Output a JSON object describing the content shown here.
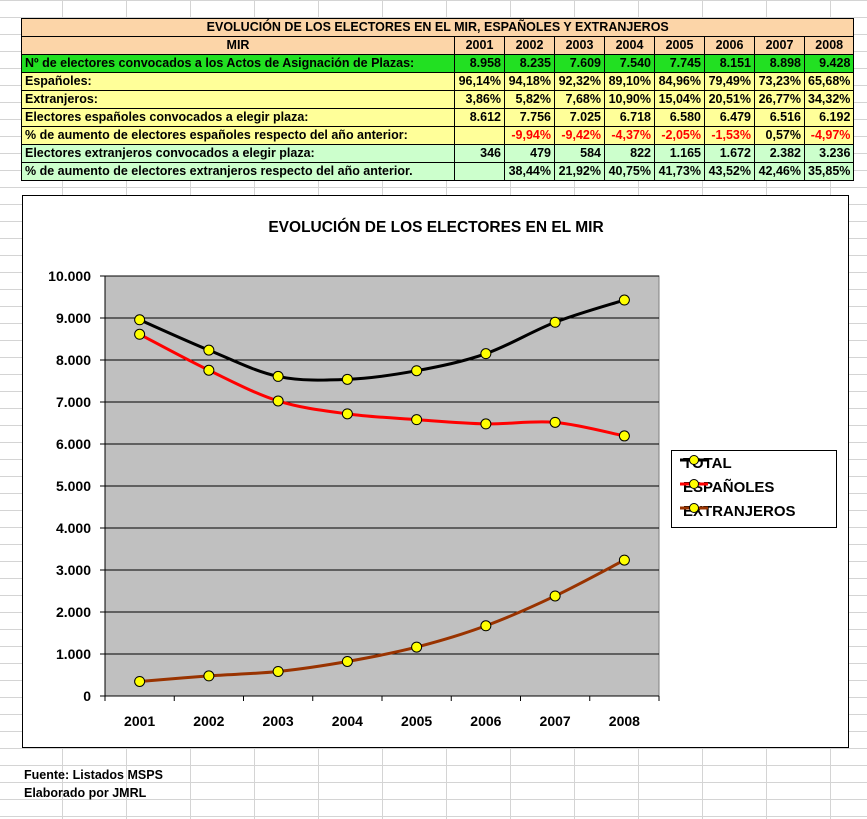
{
  "table": {
    "title": "EVOLUCIÓN DE LOS ELECTORES EN EL MIR, ESPAÑOLES Y EXTRANJEROS",
    "header_label": "MIR",
    "years": [
      "2001",
      "2002",
      "2003",
      "2004",
      "2005",
      "2006",
      "2007",
      "2008"
    ],
    "rows": [
      {
        "label": "Nº de electores convocados a los Actos de Asignación de Plazas:",
        "style": "total",
        "values": [
          "8.958",
          "8.235",
          "7.609",
          "7.540",
          "7.745",
          "8.151",
          "8.898",
          "9.428"
        ]
      },
      {
        "label": "Españoles:",
        "style": "pct",
        "values": [
          "96,14%",
          "94,18%",
          "92,32%",
          "89,10%",
          "84,96%",
          "79,49%",
          "73,23%",
          "65,68%"
        ]
      },
      {
        "label": "Extranjeros:",
        "style": "pct",
        "values": [
          "3,86%",
          "5,82%",
          "7,68%",
          "10,90%",
          "15,04%",
          "20,51%",
          "26,77%",
          "34,32%"
        ]
      },
      {
        "label": "Electores españoles convocados a elegir plaza:",
        "style": "pct",
        "values": [
          "8.612",
          "7.756",
          "7.025",
          "6.718",
          "6.580",
          "6.479",
          "6.516",
          "6.192"
        ]
      },
      {
        "label": "% de aumento de electores españoles respecto del año anterior:",
        "style": "pct",
        "negative": true,
        "values": [
          "",
          "-9,94%",
          "-9,42%",
          "-4,37%",
          "-2,05%",
          "-1,53%",
          "0,57%",
          "-4,97%"
        ],
        "value_colors": [
          "",
          "#ff0000",
          "#ff0000",
          "#ff0000",
          "#ff0000",
          "#ff0000",
          "#000000",
          "#ff0000"
        ]
      },
      {
        "label": "Electores extranjeros convocados a elegir plaza:",
        "style": "esp",
        "values": [
          "346",
          "479",
          "584",
          "822",
          "1.165",
          "1.672",
          "2.382",
          "3.236"
        ]
      },
      {
        "label": "% de aumento de electores extranjeros respecto del año anterior.",
        "style": "ext",
        "values": [
          "",
          "38,44%",
          "21,92%",
          "40,75%",
          "41,73%",
          "43,52%",
          "42,46%",
          "35,85%"
        ]
      }
    ]
  },
  "chart_data": {
    "type": "line",
    "title": "EVOLUCIÓN DE LOS ELECTORES EN EL MIR",
    "categories": [
      "2001",
      "2002",
      "2003",
      "2004",
      "2005",
      "2006",
      "2007",
      "2008"
    ],
    "ylim": [
      0,
      10000
    ],
    "y_ticks": [
      0,
      1000,
      2000,
      3000,
      4000,
      5000,
      6000,
      7000,
      8000,
      9000,
      10000
    ],
    "y_tick_labels": [
      "0",
      "1.000",
      "2.000",
      "3.000",
      "4.000",
      "5.000",
      "6.000",
      "7.000",
      "8.000",
      "9.000",
      "10.000"
    ],
    "grid": true,
    "plot_background": "#c0c0c0",
    "marker_color": "#ffff00",
    "legend_position": "right",
    "series": [
      {
        "name": "TOTAL",
        "color": "#000000",
        "values": [
          8958,
          8235,
          7609,
          7540,
          7745,
          8151,
          8898,
          9428
        ]
      },
      {
        "name": "ESPAÑOLES",
        "color": "#ff0000",
        "values": [
          8612,
          7756,
          7025,
          6718,
          6580,
          6479,
          6516,
          6192
        ]
      },
      {
        "name": "EXTRANJEROS",
        "color": "#993300",
        "values": [
          346,
          479,
          584,
          822,
          1165,
          1672,
          2382,
          3236
        ]
      }
    ]
  },
  "footer": {
    "source": "Fuente: Listados MSPS",
    "author": "Elaborado por JMRL"
  }
}
